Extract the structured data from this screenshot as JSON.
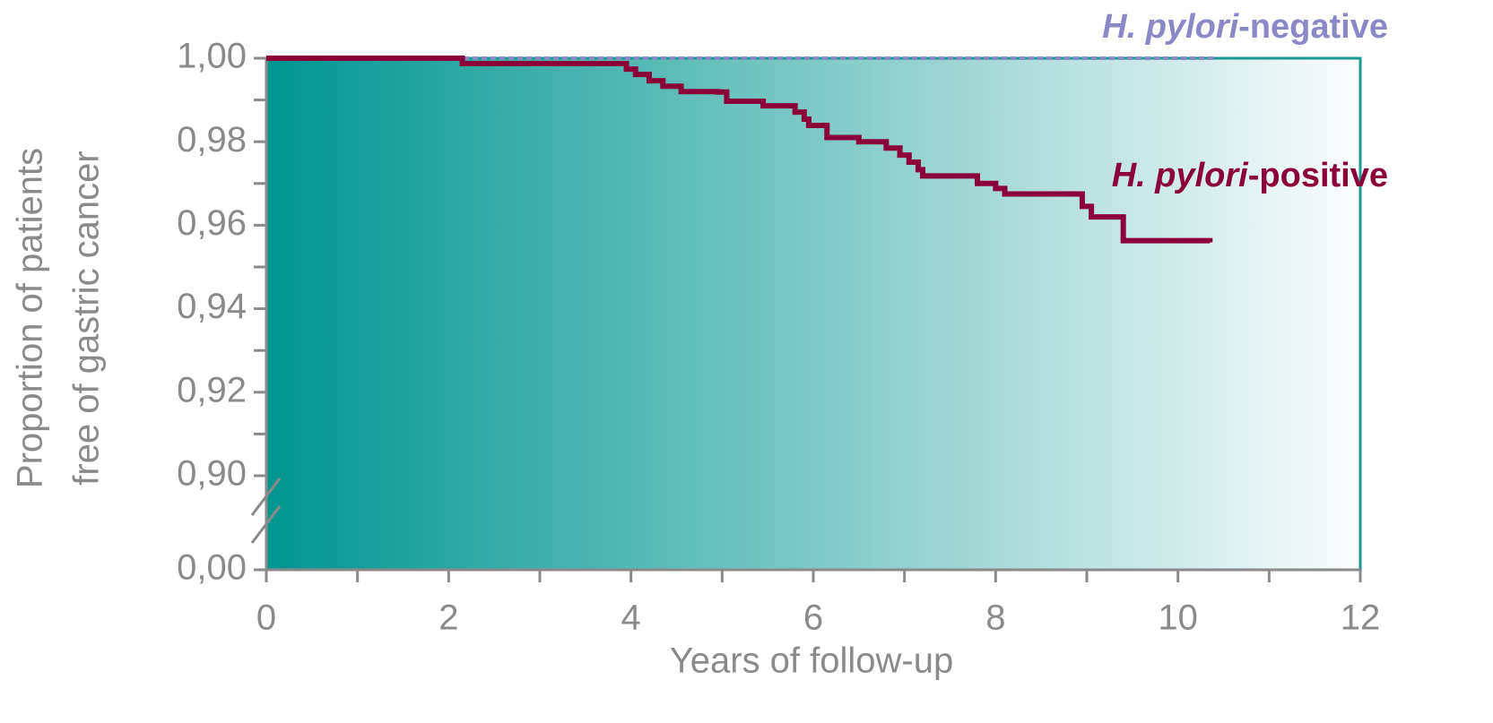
{
  "chart_data": {
    "type": "step",
    "xlabel": "Years of follow-up",
    "ylabel": [
      "Proportion of patients",
      "free of gastric cancer"
    ],
    "xlim": [
      0,
      12
    ],
    "xticks": [
      0,
      2,
      4,
      6,
      8,
      10,
      12
    ],
    "xminorticks": [
      1,
      3,
      5,
      7,
      9,
      11
    ],
    "ylim": [
      0,
      1
    ],
    "y_break": [
      0,
      0.9
    ],
    "yticks": [
      {
        "value": 0,
        "label": "0,00"
      },
      {
        "value": 0.9,
        "label": "0,90"
      },
      {
        "value": 0.92,
        "label": "0,92"
      },
      {
        "value": 0.94,
        "label": "0,94"
      },
      {
        "value": 0.96,
        "label": "0,96"
      },
      {
        "value": 0.98,
        "label": "0,98"
      },
      {
        "value": 1,
        "label": "1,00"
      }
    ],
    "yminorticks": [
      0.91,
      0.93,
      0.95,
      0.97,
      0.99
    ],
    "background": [
      "#00968f",
      "#fbfcfd"
    ],
    "series": [
      {
        "name": "H. pylori-negative",
        "color": "#8b88c8",
        "dash": true,
        "x": [
          0,
          10.4
        ],
        "values": [
          1,
          1
        ]
      },
      {
        "name": "H. pylori-positive",
        "color": "#8b0038",
        "dash": false,
        "x": [
          0,
          2.15,
          3.95,
          4.05,
          4.2,
          4.35,
          4.55,
          4.95,
          5.05,
          5.45,
          5.8,
          5.9,
          5.95,
          6.15,
          6.5,
          6.8,
          6.95,
          7.05,
          7.15,
          7.2,
          7.8,
          8.0,
          8.1,
          8.95,
          9.05,
          9.4,
          10.35
        ],
        "values": [
          1,
          0.9987,
          0.9974,
          0.9961,
          0.9946,
          0.9933,
          0.992,
          0.9919,
          0.9897,
          0.9886,
          0.9871,
          0.9854,
          0.9839,
          0.981,
          0.98,
          0.9785,
          0.9768,
          0.9751,
          0.9733,
          0.9718,
          0.97,
          0.9688,
          0.9675,
          0.9645,
          0.962,
          0.9563,
          0.9559
        ]
      }
    ]
  }
}
